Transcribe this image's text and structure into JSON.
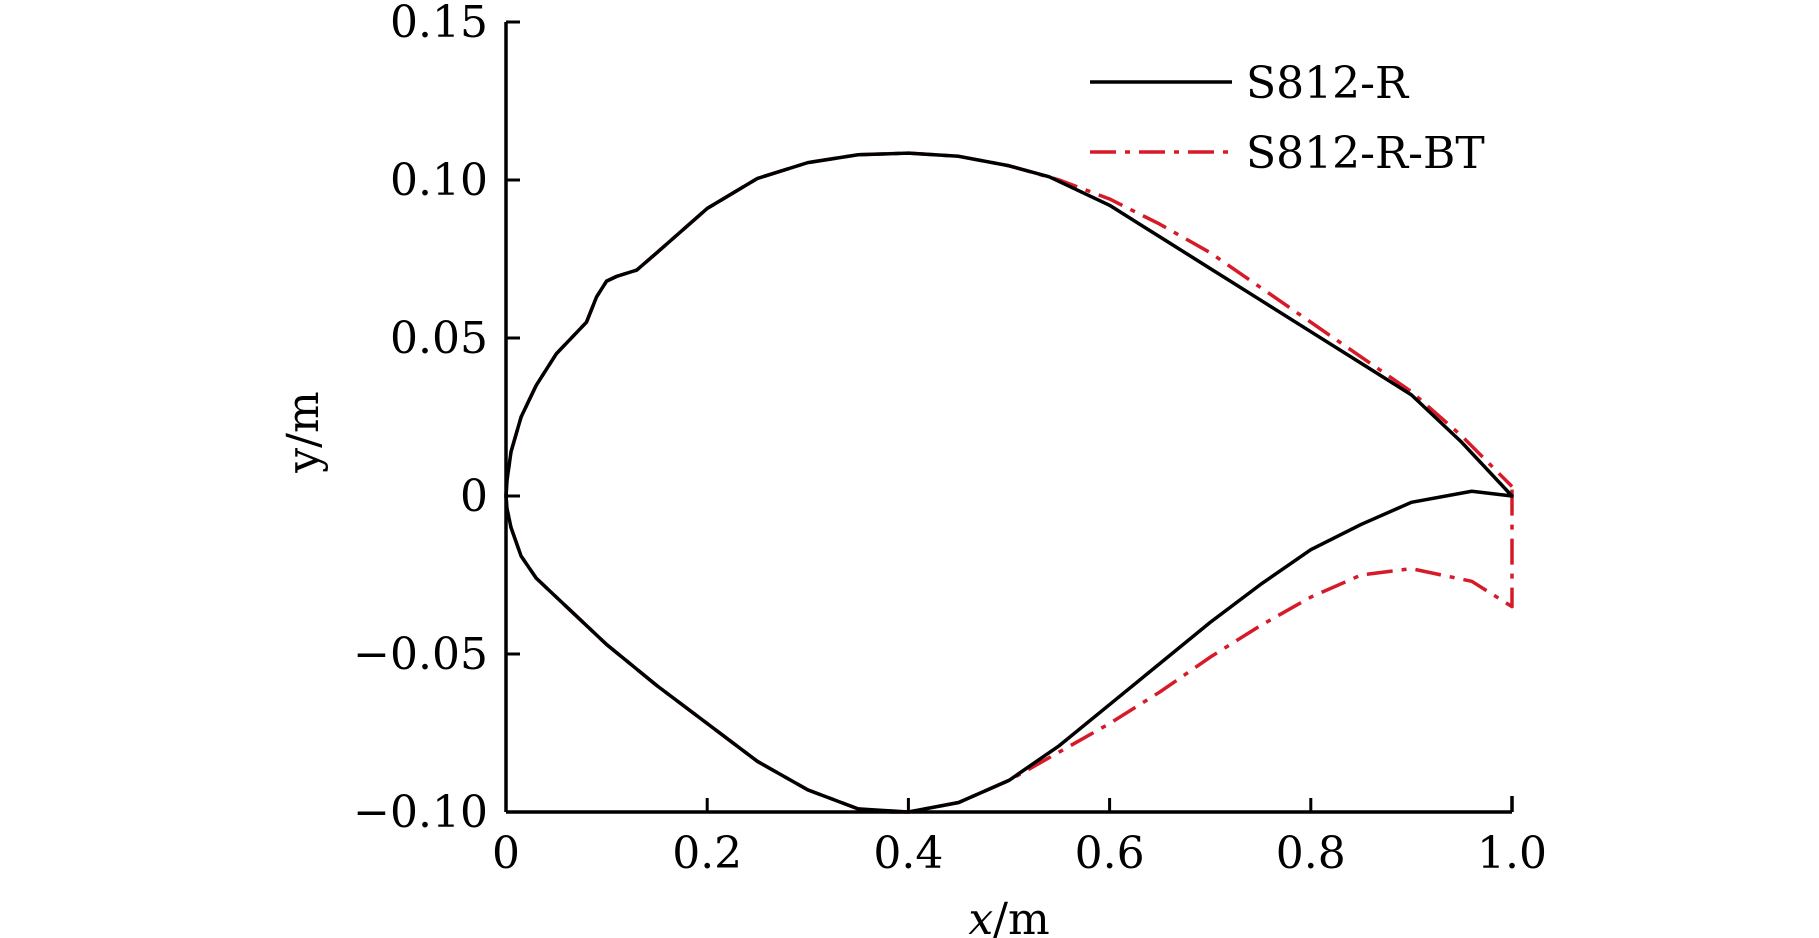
{
  "chart_data": {
    "type": "line",
    "title": "",
    "xlabel": "x/m",
    "ylabel": "y/m",
    "xlim": [
      0,
      1.0
    ],
    "ylim": [
      -0.1,
      0.15
    ],
    "x_ticks": [
      {
        "value": 0,
        "label": "0"
      },
      {
        "value": 0.2,
        "label": "0.2"
      },
      {
        "value": 0.4,
        "label": "0.4"
      },
      {
        "value": 0.6,
        "label": "0.6"
      },
      {
        "value": 0.8,
        "label": "0.8"
      },
      {
        "value": 1.0,
        "label": "1.0"
      }
    ],
    "y_ticks": [
      {
        "value": 0.15,
        "label": "0.15"
      },
      {
        "value": 0.1,
        "label": "0.10"
      },
      {
        "value": 0.05,
        "label": "0.05"
      },
      {
        "value": 0,
        "label": "0"
      },
      {
        "value": -0.05,
        "label": "−0.05"
      },
      {
        "value": -0.1,
        "label": "−0.10"
      }
    ],
    "grid": false,
    "legend_position": "top-right",
    "series": [
      {
        "name": "S812-R",
        "color": "#000000",
        "dash": "solid",
        "x": [
          1.0,
          0.96,
          0.9,
          0.85,
          0.8,
          0.75,
          0.7,
          0.65,
          0.6,
          0.55,
          0.5,
          0.45,
          0.4,
          0.35,
          0.3,
          0.25,
          0.2,
          0.15,
          0.1,
          0.07,
          0.05,
          0.03,
          0.015,
          0.005,
          0.001,
          0,
          0.001,
          0.005,
          0.015,
          0.03,
          0.05,
          0.08,
          0.09,
          0.1,
          0.11,
          0.13,
          0.15,
          0.2,
          0.25,
          0.3,
          0.35,
          0.4,
          0.45,
          0.5,
          0.54,
          0.6,
          0.65,
          0.7,
          0.75,
          0.8,
          0.85,
          0.9,
          0.95,
          1.0
        ],
        "y": [
          0.0,
          0.0015,
          -0.002,
          -0.009,
          -0.017,
          -0.028,
          -0.04,
          -0.053,
          -0.066,
          -0.079,
          -0.09,
          -0.097,
          -0.1,
          -0.099,
          -0.093,
          -0.084,
          -0.072,
          -0.06,
          -0.047,
          -0.038,
          -0.032,
          -0.026,
          -0.019,
          -0.01,
          -0.004,
          0.0,
          0.005,
          0.014,
          0.025,
          0.035,
          0.045,
          0.055,
          0.063,
          0.068,
          0.0695,
          0.0715,
          0.077,
          0.091,
          0.1005,
          0.1055,
          0.108,
          0.1085,
          0.1075,
          0.1045,
          0.101,
          0.092,
          0.082,
          0.072,
          0.062,
          0.052,
          0.042,
          0.032,
          0.017,
          0.0
        ]
      },
      {
        "name": "S812-R-BT",
        "color": "#d71a28",
        "dash": "dashdot",
        "x": [
          1.0,
          1.0,
          0.96,
          0.9,
          0.85,
          0.8,
          0.75,
          0.7,
          0.65,
          0.6,
          0.55,
          0.5,
          0.45,
          0.4,
          0.38,
          0.35,
          0.3,
          0.25,
          0.2,
          0.15,
          0.1,
          0.07,
          0.05,
          0.03,
          0.015,
          0.005,
          0.001,
          0,
          0.001,
          0.005,
          0.015,
          0.03,
          0.05,
          0.08,
          0.09,
          0.1,
          0.11,
          0.13,
          0.15,
          0.2,
          0.25,
          0.3,
          0.35,
          0.4,
          0.45,
          0.5,
          0.55,
          0.6,
          0.65,
          0.7,
          0.75,
          0.8,
          0.85,
          0.9,
          0.95,
          1.0
        ],
        "y": [
          0.002,
          -0.035,
          -0.027,
          -0.023,
          -0.025,
          -0.032,
          -0.041,
          -0.051,
          -0.062,
          -0.072,
          -0.081,
          -0.09,
          -0.097,
          -0.1,
          -0.1,
          -0.099,
          -0.093,
          -0.084,
          -0.072,
          -0.06,
          -0.047,
          -0.038,
          -0.032,
          -0.026,
          -0.019,
          -0.01,
          -0.004,
          0.0,
          0.005,
          0.014,
          0.025,
          0.035,
          0.045,
          0.055,
          0.063,
          0.068,
          0.0695,
          0.0715,
          0.077,
          0.091,
          0.1005,
          0.1055,
          0.108,
          0.1085,
          0.1075,
          0.1045,
          0.1,
          0.094,
          0.086,
          0.077,
          0.066,
          0.055,
          0.044,
          0.033,
          0.019,
          0.003
        ]
      }
    ]
  }
}
